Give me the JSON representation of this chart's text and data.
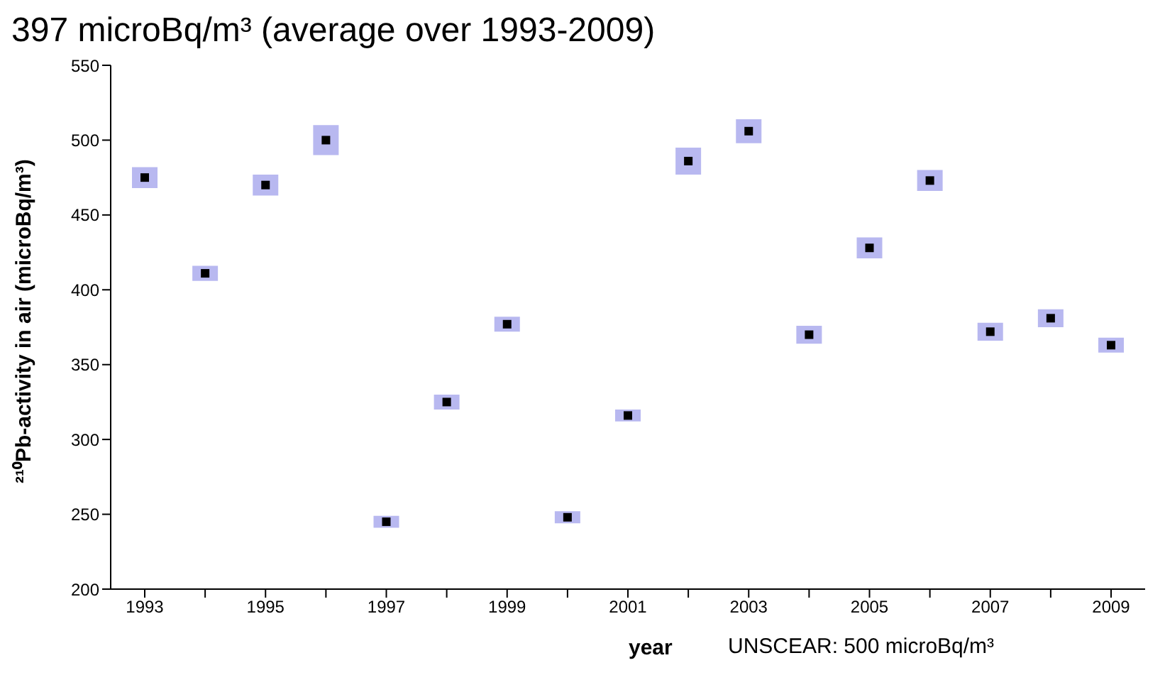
{
  "chart_data": {
    "type": "scatter",
    "title": "397 microBq/m³ (average over 1993-2009)",
    "xlabel": "year",
    "ylabel": "²¹⁰Pb-activity in air (microBq/m³)",
    "annotations": [
      "UNSCEAR: 500 microBq/m³"
    ],
    "categories": [
      "1993",
      null,
      "1995",
      null,
      "1997",
      null,
      "1999",
      null,
      "2001",
      null,
      "2003",
      null,
      "2005",
      null,
      "2007",
      null,
      "2009"
    ],
    "values": [
      475,
      411,
      470,
      500,
      245,
      325,
      377,
      248,
      316,
      486,
      506,
      370,
      428,
      473,
      372,
      381,
      363
    ],
    "errors": [
      7,
      5,
      7,
      10,
      4,
      5,
      5,
      4,
      4,
      9,
      8,
      6,
      7,
      7,
      6,
      6,
      5
    ],
    "color": "#000000",
    "marker": "square",
    "ylim": [
      200,
      550
    ],
    "yticks": [
      200,
      250,
      300,
      350,
      400,
      450,
      500,
      550
    ],
    "grid": false
  }
}
